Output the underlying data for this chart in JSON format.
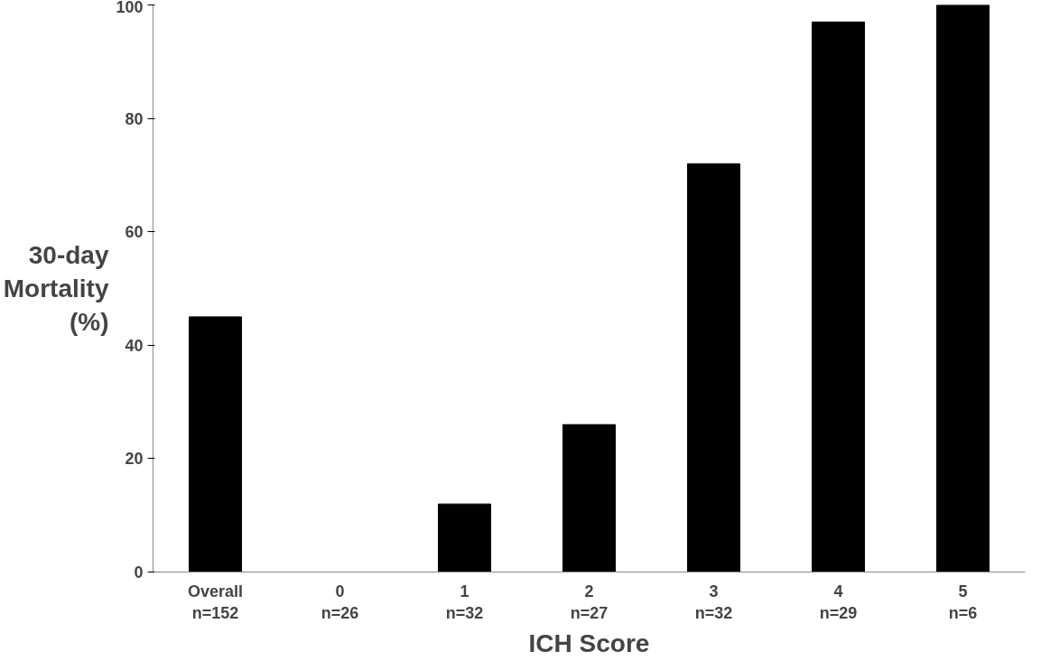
{
  "chart_data": {
    "type": "bar",
    "xlabel": "ICH Score",
    "ylabel": "30-day\nMortality\n(%)",
    "categories": [
      "Overall\nn=152",
      "0\nn=26",
      "1\nn=32",
      "2\nn=27",
      "3\nn=32",
      "4\nn=29",
      "5\nn=6"
    ],
    "values": [
      45,
      0,
      12,
      26,
      72,
      97,
      100
    ],
    "color": "#000000",
    "ylim": [
      0,
      100
    ],
    "yticks": [
      0,
      20,
      40,
      60,
      80,
      100
    ],
    "grid": false
  }
}
